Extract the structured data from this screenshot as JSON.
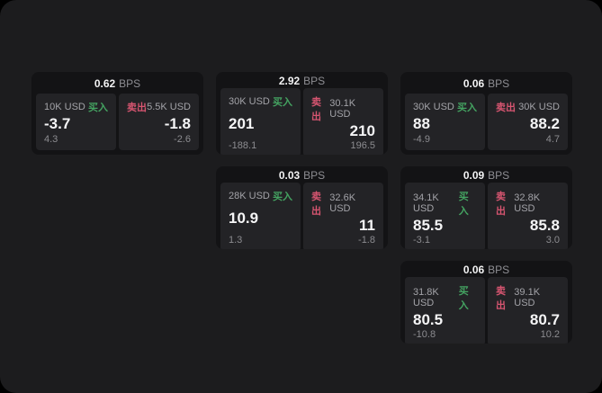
{
  "labels": {
    "bps_unit": "BPS",
    "buy": "买入",
    "sell": "卖出"
  },
  "colors": {
    "buy_green": "#44a361",
    "sell_red": "#d65570",
    "panel_bg": "#1c1c1e",
    "card_bg": "#131315",
    "tile_bg": "#232326"
  },
  "cards": [
    {
      "bps": "0.62",
      "buy": {
        "size": "10K USD",
        "price": "-3.7",
        "delta": "4.3"
      },
      "sell": {
        "size": "5.5K USD",
        "price": "-1.8",
        "delta": "-2.6"
      }
    },
    {
      "bps": "2.92",
      "buy": {
        "size": "30K USD",
        "price": "201",
        "delta": "-188.1"
      },
      "sell": {
        "size": "30.1K USD",
        "price": "210",
        "delta": "196.5"
      }
    },
    {
      "bps": "0.06",
      "buy": {
        "size": "30K USD",
        "price": "88",
        "delta": "-4.9"
      },
      "sell": {
        "size": "30K USD",
        "price": "88.2",
        "delta": "4.7"
      }
    },
    {
      "bps": "0.03",
      "buy": {
        "size": "28K USD",
        "price": "10.9",
        "delta": "1.3"
      },
      "sell": {
        "size": "32.6K USD",
        "price": "11",
        "delta": "-1.8"
      }
    },
    {
      "bps": "0.09",
      "buy": {
        "size": "34.1K USD",
        "price": "85.5",
        "delta": "-3.1"
      },
      "sell": {
        "size": "32.8K USD",
        "price": "85.8",
        "delta": "3.0"
      }
    },
    {
      "bps": "0.06",
      "buy": {
        "size": "31.8K USD",
        "price": "80.5",
        "delta": "-10.8"
      },
      "sell": {
        "size": "39.1K USD",
        "price": "80.7",
        "delta": "10.2"
      }
    }
  ]
}
